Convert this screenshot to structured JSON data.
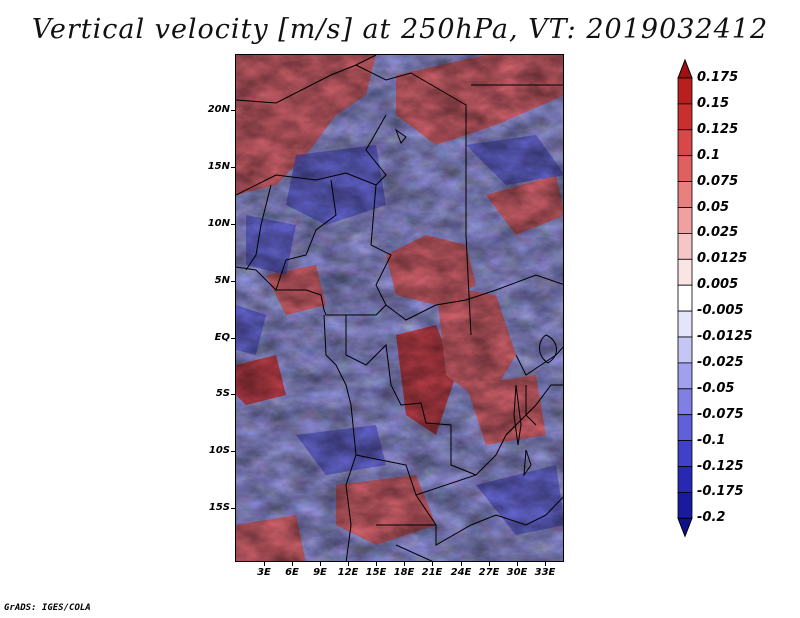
{
  "title": "Vertical velocity [m/s] at 250hPa, VT: 2019032412",
  "footer": "GrADS: IGES/COLA",
  "map": {
    "projection": "lat-lon",
    "lon_range": [
      0,
      35
    ],
    "lat_range": [
      -20,
      25
    ],
    "lat_labels": [
      "20N",
      "15N",
      "10N",
      "5N",
      "EQ",
      "5S",
      "10S",
      "15S"
    ],
    "lon_labels": [
      "3E",
      "6E",
      "9E",
      "12E",
      "15E",
      "18E",
      "21E",
      "24E",
      "27E",
      "30E",
      "33E"
    ]
  },
  "colorbar": {
    "labels": [
      "0.175",
      "0.15",
      "0.125",
      "0.1",
      "0.075",
      "0.05",
      "0.025",
      "0.0125",
      "0.005",
      "-0.005",
      "-0.0125",
      "-0.025",
      "-0.05",
      "-0.075",
      "-0.1",
      "-0.125",
      "-0.175",
      "-0.2"
    ],
    "colors": [
      "#a01010",
      "#b82020",
      "#c83030",
      "#d84848",
      "#e06060",
      "#e88080",
      "#f0a0a0",
      "#f6c6c6",
      "#fbe4e4",
      "#ffffff",
      "#e4e4fb",
      "#c6c6f4",
      "#a0a0ec",
      "#8080e4",
      "#6060d8",
      "#4040c8",
      "#2828b4",
      "#1a1aa0",
      "#10108a"
    ]
  }
}
